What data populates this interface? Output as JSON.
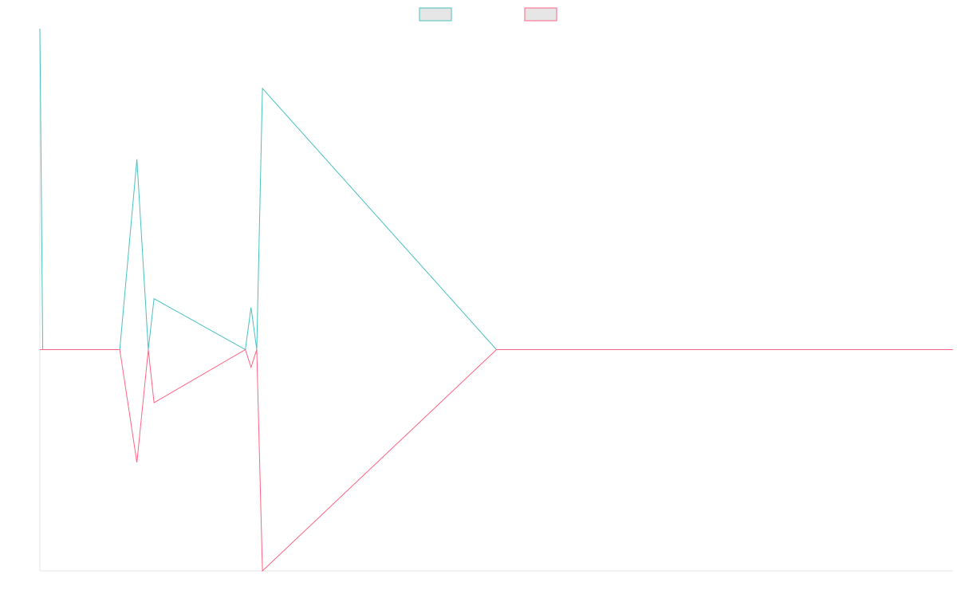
{
  "chart_data": {
    "type": "line",
    "title": "",
    "xlabel": "",
    "ylabel": "",
    "grid": false,
    "legend": {
      "placement": "top-center"
    },
    "x": [
      0,
      0.5,
      2,
      14,
      17,
      19,
      20,
      36,
      37,
      38,
      39,
      80,
      160
    ],
    "ylim": [
      -100,
      145
    ],
    "series": [
      {
        "name": "",
        "color": "#4bc0c0",
        "values": [
          145,
          0,
          0,
          0,
          86,
          0,
          23,
          0,
          19,
          0,
          118,
          0,
          0
        ]
      },
      {
        "name": "",
        "color": "#ff6384",
        "values": [
          0,
          0,
          0,
          0,
          -51,
          0,
          -24,
          0,
          -8,
          0,
          -100,
          0,
          0
        ]
      }
    ]
  }
}
